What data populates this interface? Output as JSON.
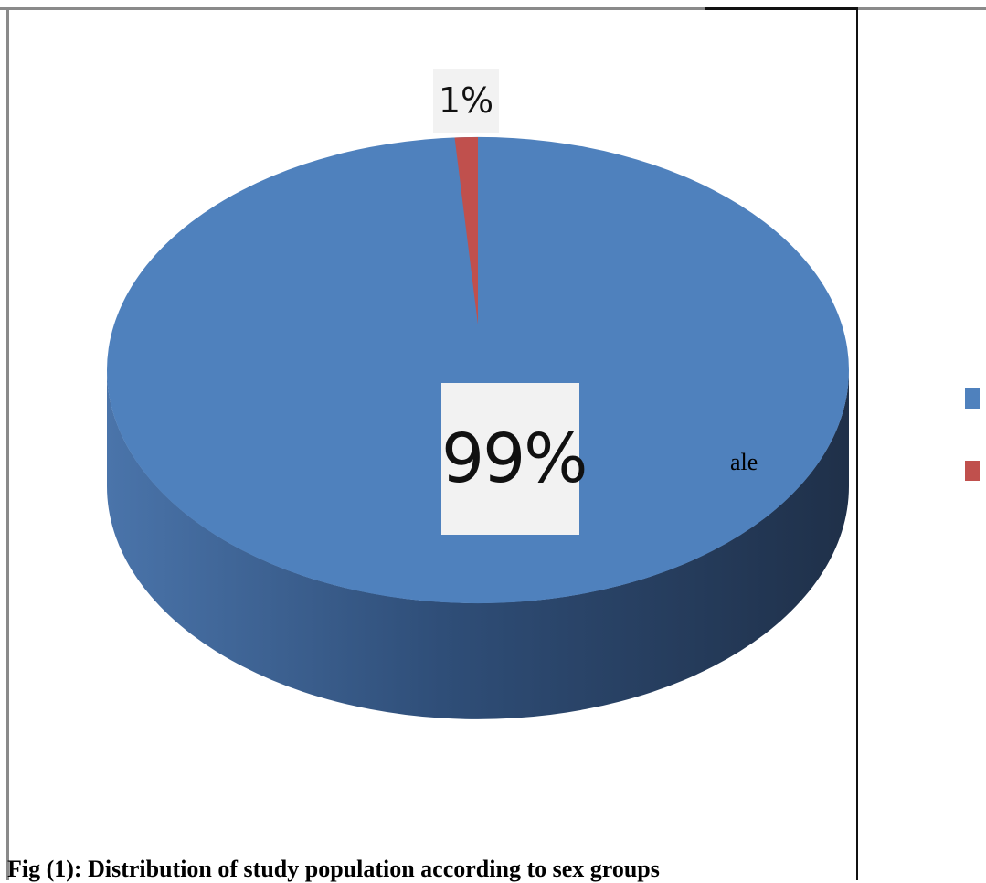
{
  "chart_data": {
    "type": "pie",
    "style": "3d",
    "slices": [
      {
        "label": "99%",
        "value": 99,
        "color": "#4f81bd"
      },
      {
        "label": "1%",
        "value": 1,
        "color": "#c0504d"
      }
    ],
    "legend": {
      "placement": "right",
      "entries": [
        {
          "color": "#4f81bd"
        },
        {
          "color": "#c0504d"
        }
      ]
    }
  },
  "stray_text": "ale",
  "caption": "Fig (1): Distribution of study population according to sex groups"
}
